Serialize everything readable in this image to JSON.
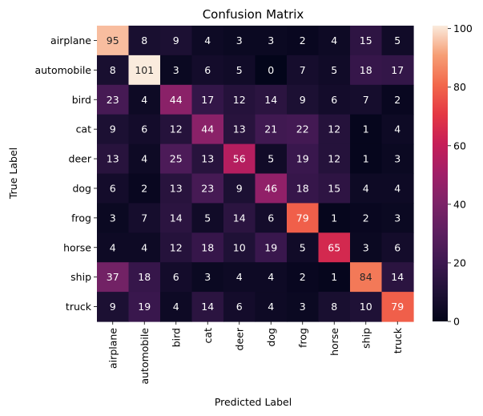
{
  "chart_data": {
    "type": "heatmap",
    "title": "Confusion Matrix",
    "xlabel": "Predicted Label",
    "ylabel": "True Label",
    "x_categories": [
      "airplane",
      "automobile",
      "bird",
      "cat",
      "deer",
      "dog",
      "frog",
      "horse",
      "ship",
      "truck"
    ],
    "y_categories": [
      "airplane",
      "automobile",
      "bird",
      "cat",
      "deer",
      "dog",
      "frog",
      "horse",
      "ship",
      "truck"
    ],
    "values": [
      [
        95,
        8,
        9,
        4,
        3,
        3,
        2,
        4,
        15,
        5
      ],
      [
        8,
        101,
        3,
        6,
        5,
        0,
        7,
        5,
        18,
        17
      ],
      [
        23,
        4,
        44,
        17,
        12,
        14,
        9,
        6,
        7,
        2
      ],
      [
        9,
        6,
        12,
        44,
        13,
        21,
        22,
        12,
        1,
        4
      ],
      [
        13,
        4,
        25,
        13,
        56,
        5,
        19,
        12,
        1,
        3
      ],
      [
        6,
        2,
        13,
        23,
        9,
        46,
        18,
        15,
        4,
        4
      ],
      [
        3,
        7,
        14,
        5,
        14,
        6,
        79,
        1,
        2,
        3
      ],
      [
        4,
        4,
        12,
        18,
        10,
        19,
        5,
        65,
        3,
        6
      ],
      [
        37,
        18,
        6,
        3,
        4,
        4,
        2,
        1,
        84,
        14
      ],
      [
        9,
        19,
        4,
        14,
        6,
        4,
        3,
        8,
        10,
        79
      ]
    ],
    "colorbar": {
      "range": [
        0,
        101
      ],
      "ticks": [
        0,
        20,
        40,
        60,
        80,
        100
      ]
    },
    "colormap": "rocket",
    "grid": false,
    "legend": "colorbar-right"
  }
}
